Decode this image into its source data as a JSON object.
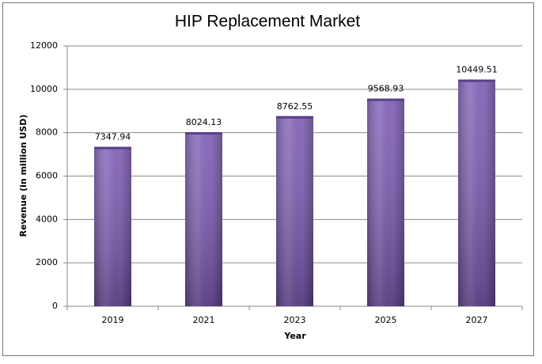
{
  "chart_data": {
    "type": "bar",
    "title": "HIP Replacement Market",
    "x_label": "Year",
    "y_label": "Revenue (in million USD)",
    "categories": [
      "2019",
      "2021",
      "2023",
      "2025",
      "2027"
    ],
    "values": [
      7347.94,
      8024.13,
      8762.55,
      9568.93,
      10449.51
    ],
    "color": "#7e5cb5",
    "ylim": [
      0,
      12000
    ],
    "yticks": [
      0,
      2000,
      4000,
      6000,
      8000,
      10000,
      12000
    ],
    "grid": true
  }
}
